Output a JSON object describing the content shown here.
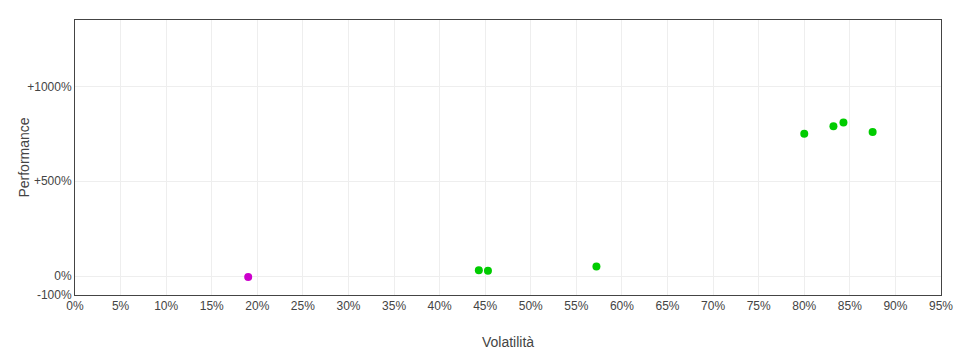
{
  "chart_data": {
    "type": "scatter",
    "xlabel": "Volatilità",
    "ylabel": "Performance",
    "x": [
      0.19,
      0.443,
      0.453,
      0.572,
      0.8,
      0.832,
      0.843,
      0.875
    ],
    "values": [
      -0.05,
      0.3,
      0.28,
      0.5,
      7.5,
      7.9,
      8.1,
      7.6
    ],
    "colors": [
      "#cc00cc",
      "#00cc00",
      "#00cc00",
      "#00cc00",
      "#00cc00",
      "#00cc00",
      "#00cc00",
      "#00cc00"
    ],
    "xlim": [
      0.0,
      0.95
    ],
    "ylim": [
      -1.0,
      13.5
    ],
    "xticks": [
      {
        "value": 0.0,
        "label": "0%"
      },
      {
        "value": 0.05,
        "label": "5%"
      },
      {
        "value": 0.1,
        "label": "10%"
      },
      {
        "value": 0.15,
        "label": "15%"
      },
      {
        "value": 0.2,
        "label": "20%"
      },
      {
        "value": 0.25,
        "label": "25%"
      },
      {
        "value": 0.3,
        "label": "30%"
      },
      {
        "value": 0.35,
        "label": "35%"
      },
      {
        "value": 0.4,
        "label": "40%"
      },
      {
        "value": 0.45,
        "label": "45%"
      },
      {
        "value": 0.5,
        "label": "50%"
      },
      {
        "value": 0.55,
        "label": "55%"
      },
      {
        "value": 0.6,
        "label": "60%"
      },
      {
        "value": 0.65,
        "label": "65%"
      },
      {
        "value": 0.7,
        "label": "70%"
      },
      {
        "value": 0.75,
        "label": "75%"
      },
      {
        "value": 0.8,
        "label": "80%"
      },
      {
        "value": 0.85,
        "label": "85%"
      },
      {
        "value": 0.9,
        "label": "90%"
      },
      {
        "value": 0.95,
        "label": "95%"
      }
    ],
    "yticks": [
      {
        "value": -1.0,
        "label": "-100%"
      },
      {
        "value": 0.0,
        "label": "0%"
      },
      {
        "value": 5.0,
        "label": "+500%"
      },
      {
        "value": 10.0,
        "label": "+1000%"
      }
    ],
    "grid": true
  }
}
